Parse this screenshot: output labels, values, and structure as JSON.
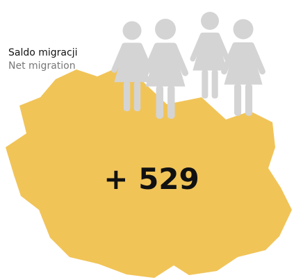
{
  "label_pl": "Saldo migracji",
  "label_en": "Net migration",
  "value": "+ 529"
}
